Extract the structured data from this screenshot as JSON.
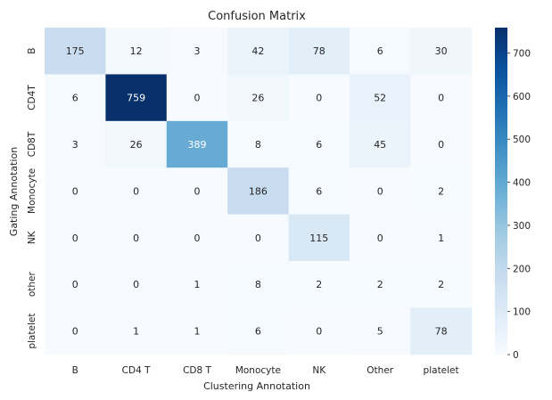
{
  "chart_data": {
    "type": "heatmap",
    "title": "Confusion Matrix",
    "xlabel": "Clustering Annotation",
    "ylabel": "Gating Annotation",
    "x_categories": [
      "B",
      "CD4 T",
      "CD8 T",
      "Monocyte",
      "NK",
      "Other",
      "platelet"
    ],
    "y_categories": [
      "B",
      "CD4T",
      "CD8T",
      "Monocyte",
      "NK",
      "other",
      "platelet"
    ],
    "values": [
      [
        175,
        12,
        3,
        42,
        78,
        6,
        30
      ],
      [
        6,
        759,
        0,
        26,
        0,
        52,
        0
      ],
      [
        3,
        26,
        389,
        8,
        6,
        45,
        0
      ],
      [
        0,
        0,
        0,
        186,
        6,
        0,
        2
      ],
      [
        0,
        0,
        0,
        0,
        115,
        0,
        1
      ],
      [
        0,
        0,
        1,
        8,
        2,
        2,
        2
      ],
      [
        0,
        1,
        1,
        6,
        0,
        5,
        78
      ]
    ],
    "colorbar": {
      "colormap": "Blues",
      "range": [
        0,
        759
      ],
      "ticks": [
        "0",
        "100",
        "200",
        "300",
        "400",
        "500",
        "600",
        "700"
      ]
    },
    "grid": false
  }
}
